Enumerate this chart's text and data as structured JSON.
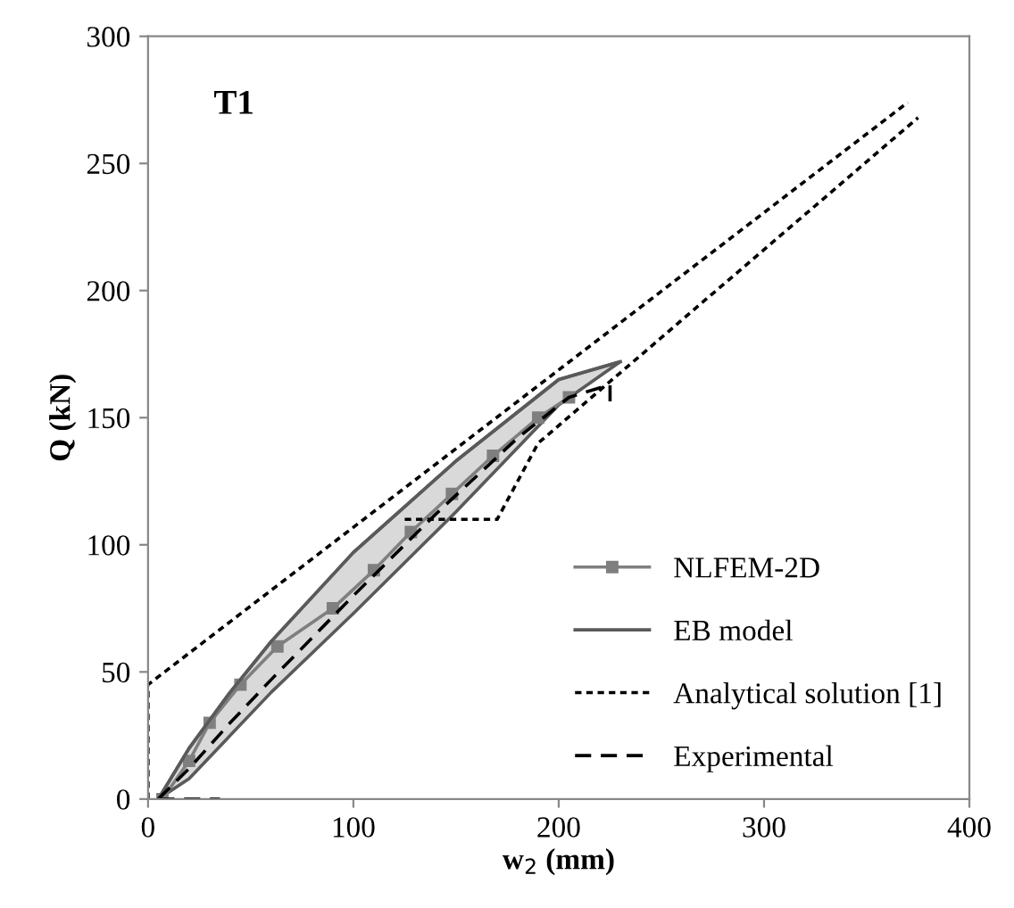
{
  "chart_data": {
    "type": "line",
    "xlabel": "w$_{2}$ (mm)",
    "ylabel": "Q (kN)",
    "annotations": [
      "T1"
    ],
    "xlim": [
      0,
      400
    ],
    "xticks": [
      0,
      100,
      200,
      300,
      400
    ],
    "ylim": [
      0,
      300
    ],
    "yticks": [
      0,
      50,
      100,
      150,
      200,
      250,
      300
    ],
    "grid": false,
    "legend": "bottom right",
    "series": [
      {
        "name": "NLFEM-2D",
        "color": "#7f7f7f",
        "marker": "square",
        "line_style": "solid",
        "x": [
          7,
          20,
          30,
          45,
          63,
          90,
          110,
          128,
          148,
          168,
          190,
          205
        ],
        "values": [
          0,
          15,
          30,
          45,
          60,
          75,
          90,
          105,
          120,
          135,
          150,
          158
        ]
      },
      {
        "name": "EB model",
        "color": "#5a5a5a",
        "marker": "none",
        "line_style": "solid",
        "x": [
          5,
          20,
          40,
          60,
          100,
          150,
          200,
          230
        ],
        "values": [
          0,
          20,
          42,
          62,
          97,
          133,
          165,
          172
        ],
        "lower": [
          0,
          8,
          25,
          42,
          73,
          113,
          155,
          172
        ],
        "upper": [
          0,
          20,
          42,
          62,
          97,
          133,
          165,
          172
        ]
      },
      {
        "name": "Analytical solution [1]",
        "color": "#000000",
        "marker": "none",
        "line_style": "dotted",
        "x": [
          0,
          0,
          370
        ],
        "values": [
          0,
          45,
          274
        ]
      },
      {
        "color": "#000000",
        "marker": "none",
        "line_style": "dotted",
        "x": [
          125,
          170,
          190,
          375
        ],
        "values": [
          110,
          110,
          140,
          268
        ]
      },
      {
        "name": "Experimental",
        "color": "#000000",
        "marker": "none",
        "line_style": "dashed",
        "x": [
          5,
          20,
          40,
          60,
          100,
          140,
          180,
          205,
          225,
          225
        ],
        "values": [
          0,
          12,
          30,
          47,
          80,
          112,
          142,
          158,
          163,
          155
        ]
      },
      {
        "color": "#000000",
        "marker": "none",
        "line_style": "dashed",
        "x": [
          5,
          35
        ],
        "values": [
          0,
          0
        ]
      }
    ]
  }
}
